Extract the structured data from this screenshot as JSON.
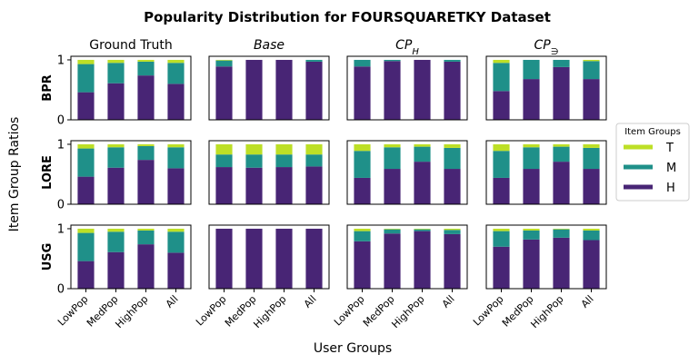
{
  "chart_data": {
    "type": "bar",
    "stacked": true,
    "title": "Popularity Distribution for FOURSQUARETKY Dataset",
    "xlabel": "User Groups",
    "ylabel": "Item Group Ratios",
    "ylim": [
      0,
      1
    ],
    "yticks": [
      "0",
      "1"
    ],
    "categories": [
      "LowPop",
      "MedPop",
      "HighPop",
      "All"
    ],
    "columns": [
      {
        "id": "gt",
        "main": "Ground Truth",
        "sub": "",
        "italic": false
      },
      {
        "id": "base",
        "main": "Base",
        "sub": "",
        "italic": true
      },
      {
        "id": "cph",
        "main": "CP",
        "sub": "H",
        "italic": true
      },
      {
        "id": "cp3",
        "main": "CP",
        "sub": "∋",
        "italic": true
      }
    ],
    "rows": [
      "BPR",
      "LORE",
      "USG"
    ],
    "legend": {
      "title": "Item Groups",
      "placement": "right",
      "items": [
        {
          "label": "T",
          "color": "#bddf26"
        },
        {
          "label": "M",
          "color": "#1f9089"
        },
        {
          "label": "H",
          "color": "#482575"
        }
      ]
    },
    "panels": {
      "BPR": {
        "gt": {
          "H": [
            0.46,
            0.61,
            0.74,
            0.6
          ],
          "M": [
            0.47,
            0.34,
            0.23,
            0.35
          ],
          "T": [
            0.07,
            0.05,
            0.03,
            0.05
          ]
        },
        "base": {
          "H": [
            0.89,
            1.0,
            1.0,
            0.97
          ],
          "M": [
            0.1,
            0.0,
            0.0,
            0.03
          ],
          "T": [
            0.01,
            0.0,
            0.0,
            0.0
          ]
        },
        "cph": {
          "H": [
            0.89,
            0.98,
            1.0,
            0.97
          ],
          "M": [
            0.11,
            0.02,
            0.0,
            0.03
          ],
          "T": [
            0.0,
            0.0,
            0.0,
            0.0
          ]
        },
        "cp3": {
          "H": [
            0.48,
            0.68,
            0.88,
            0.68
          ],
          "M": [
            0.47,
            0.32,
            0.12,
            0.3
          ],
          "T": [
            0.05,
            0.0,
            0.0,
            0.02
          ]
        }
      },
      "LORE": {
        "gt": {
          "H": [
            0.46,
            0.61,
            0.74,
            0.6
          ],
          "M": [
            0.47,
            0.34,
            0.23,
            0.35
          ],
          "T": [
            0.07,
            0.05,
            0.03,
            0.05
          ]
        },
        "base": {
          "H": [
            0.62,
            0.61,
            0.62,
            0.63
          ],
          "M": [
            0.21,
            0.22,
            0.21,
            0.2
          ],
          "T": [
            0.17,
            0.17,
            0.17,
            0.17
          ]
        },
        "cph": {
          "H": [
            0.44,
            0.59,
            0.71,
            0.59
          ],
          "M": [
            0.45,
            0.36,
            0.25,
            0.35
          ],
          "T": [
            0.11,
            0.05,
            0.04,
            0.06
          ]
        },
        "cp3": {
          "H": [
            0.44,
            0.59,
            0.71,
            0.59
          ],
          "M": [
            0.45,
            0.36,
            0.25,
            0.35
          ],
          "T": [
            0.11,
            0.05,
            0.04,
            0.06
          ]
        }
      },
      "USG": {
        "gt": {
          "H": [
            0.46,
            0.61,
            0.74,
            0.6
          ],
          "M": [
            0.47,
            0.34,
            0.23,
            0.35
          ],
          "T": [
            0.07,
            0.05,
            0.03,
            0.05
          ]
        },
        "base": {
          "H": [
            1.0,
            1.0,
            1.0,
            1.0
          ],
          "M": [
            0.0,
            0.0,
            0.0,
            0.0
          ],
          "T": [
            0.0,
            0.0,
            0.0,
            0.0
          ]
        },
        "cph": {
          "H": [
            0.79,
            0.92,
            0.96,
            0.91
          ],
          "M": [
            0.17,
            0.07,
            0.03,
            0.07
          ],
          "T": [
            0.04,
            0.01,
            0.01,
            0.02
          ]
        },
        "cp3": {
          "H": [
            0.7,
            0.82,
            0.85,
            0.81
          ],
          "M": [
            0.26,
            0.15,
            0.14,
            0.16
          ],
          "T": [
            0.04,
            0.03,
            0.01,
            0.03
          ]
        }
      }
    }
  }
}
